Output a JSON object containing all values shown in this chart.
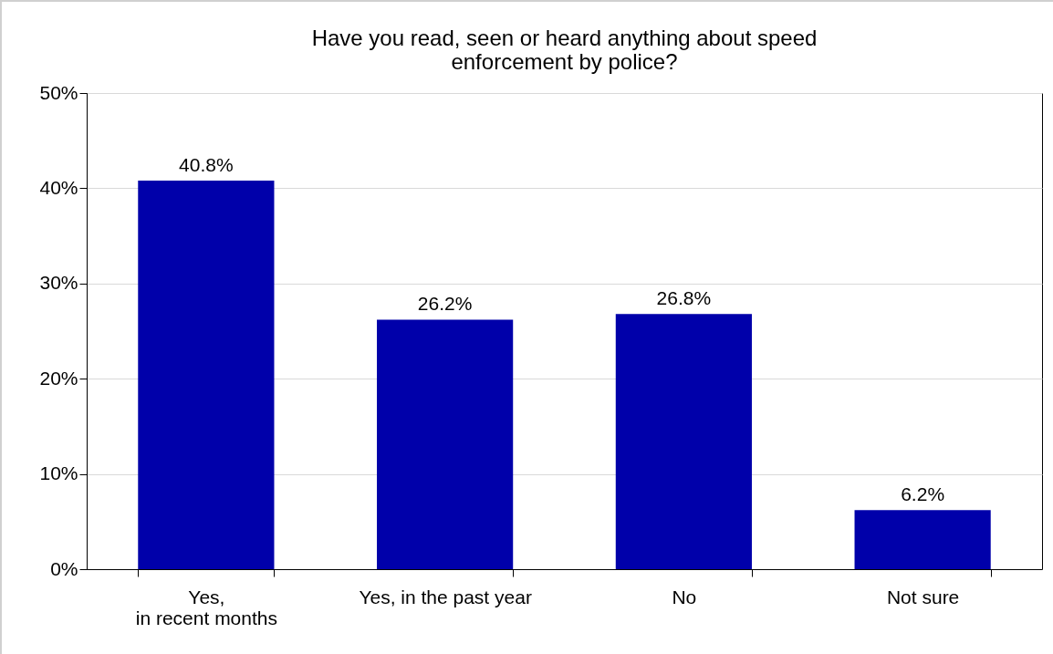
{
  "chart_data": {
    "type": "bar",
    "title": "Have you read, seen or heard anything about speed\nenforcement by police?",
    "categories": [
      "Yes,\nin recent months",
      "Yes, in the past year",
      "No",
      "Not sure"
    ],
    "values": [
      40.8,
      26.2,
      26.8,
      6.2
    ],
    "color": "#0000aa",
    "value_labels": [
      "40.8%",
      "26.2%",
      "26.8%",
      "6.2%"
    ],
    "ylim": [
      0,
      50
    ],
    "yticks": [
      {
        "value": 0,
        "label": "0%"
      },
      {
        "value": 10,
        "label": "10%"
      },
      {
        "value": 20,
        "label": "20%"
      },
      {
        "value": 30,
        "label": "30%"
      },
      {
        "value": 40,
        "label": "40%"
      },
      {
        "value": 50,
        "label": "50%"
      }
    ],
    "grid": "y"
  }
}
